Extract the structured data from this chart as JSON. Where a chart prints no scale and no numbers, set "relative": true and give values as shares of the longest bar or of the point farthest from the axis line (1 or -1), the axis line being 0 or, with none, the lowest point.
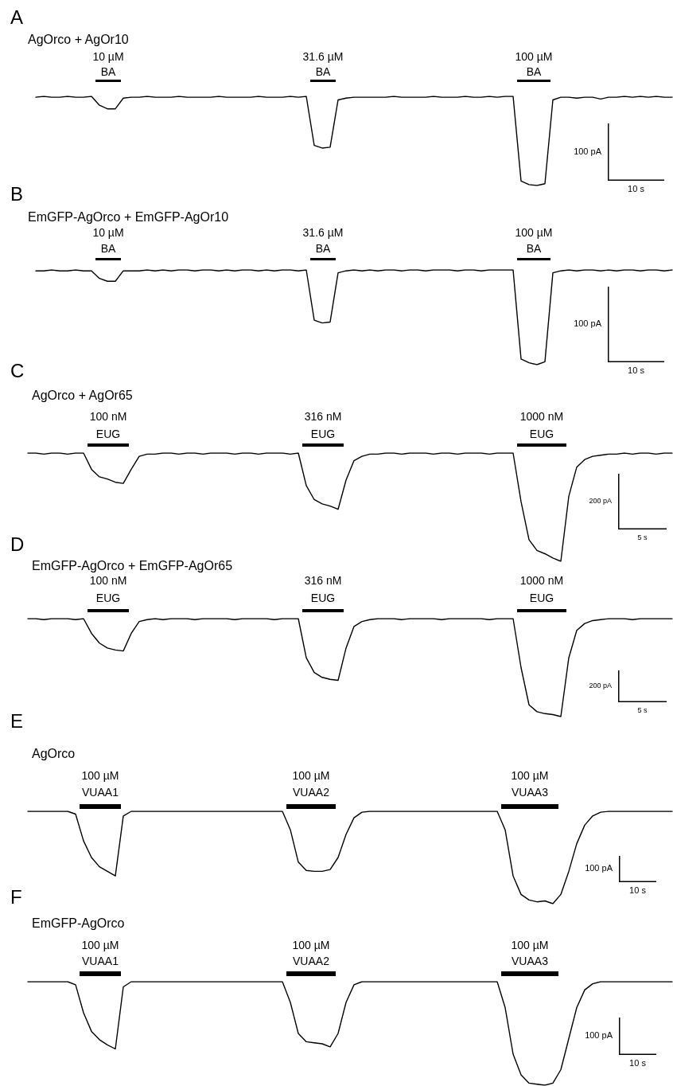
{
  "chart_data": [
    {
      "type": "line",
      "title": "A",
      "subtitle": "AgOrco + AgOr10",
      "relative": true,
      "marker": "none",
      "line_style": "solid",
      "color": "#000000",
      "annotations": [
        "10 µM",
        "BA",
        "31.6 µM",
        "BA",
        "100 µM",
        "BA",
        "100 pA",
        "10 s"
      ],
      "categories": [
        null,
        null,
        null,
        null,
        null,
        null,
        null,
        null,
        null,
        null,
        null,
        null,
        null,
        null,
        null,
        null,
        null,
        null,
        null,
        null,
        null,
        null,
        null,
        null,
        null,
        null,
        null,
        null,
        null,
        null,
        null,
        null,
        null,
        null,
        null,
        null,
        null,
        null,
        null,
        null,
        null,
        null,
        null,
        null,
        null,
        null,
        null,
        null,
        null,
        null,
        null,
        null,
        null,
        null,
        null,
        null,
        null,
        null,
        null,
        null,
        null,
        null,
        null,
        null,
        null,
        null,
        null,
        null,
        null,
        null,
        null,
        null,
        null,
        null,
        null,
        null,
        null,
        null,
        null,
        null,
        null
      ],
      "values": [
        0.99,
        1,
        0.99,
        0.99,
        1,
        0.99,
        0.99,
        1,
        0.9,
        0.86,
        0.86,
        0.98,
        0.99,
        0.99,
        1,
        0.99,
        0.99,
        0.99,
        1,
        0.99,
        0.99,
        0.99,
        0.99,
        1,
        0.99,
        0.99,
        0.99,
        0.99,
        1,
        0.99,
        0.99,
        0.99,
        1,
        0.99,
        1,
        0.45,
        0.42,
        0.43,
        0.96,
        0.98,
        0.99,
        0.99,
        0.99,
        0.99,
        0.99,
        1,
        0.99,
        0.99,
        0.99,
        0.99,
        1,
        0.99,
        0.99,
        0.99,
        1,
        0.99,
        0.99,
        1,
        0.99,
        1,
        1,
        0.05,
        0.01,
        0,
        0.02,
        0.96,
        0.99,
        0.99,
        0.98,
        0.99,
        0.99,
        0.97,
        0.99,
        0.99,
        1,
        0.99,
        1,
        0.99,
        1,
        0.99,
        0.99
      ]
    },
    {
      "type": "line",
      "title": "B",
      "subtitle": "EmGFP-AgOrco + EmGFP-AgOr10",
      "relative": true,
      "marker": "none",
      "line_style": "solid",
      "color": "#000000",
      "annotations": [
        "10 µM",
        "BA",
        "31.6 µM",
        "BA",
        "100 µM",
        "BA",
        "100 pA",
        "10 s"
      ],
      "categories": [
        null,
        null,
        null,
        null,
        null,
        null,
        null,
        null,
        null,
        null,
        null,
        null,
        null,
        null,
        null,
        null,
        null,
        null,
        null,
        null,
        null,
        null,
        null,
        null,
        null,
        null,
        null,
        null,
        null,
        null,
        null,
        null,
        null,
        null,
        null,
        null,
        null,
        null,
        null,
        null,
        null,
        null,
        null,
        null,
        null,
        null,
        null,
        null,
        null,
        null,
        null,
        null,
        null,
        null,
        null,
        null,
        null,
        null,
        null,
        null,
        null,
        null,
        null,
        null,
        null,
        null,
        null,
        null,
        null,
        null,
        null,
        null,
        null,
        null,
        null,
        null,
        null,
        null,
        null,
        null,
        null
      ],
      "values": [
        0.99,
        0.99,
        1,
        0.99,
        0.99,
        1,
        0.99,
        0.99,
        0.91,
        0.88,
        0.88,
        0.99,
        0.99,
        0.99,
        1,
        0.99,
        1,
        0.99,
        1,
        1,
        0.99,
        1,
        1,
        0.99,
        1,
        0.99,
        1,
        1,
        0.99,
        1,
        0.99,
        1,
        1,
        0.99,
        1,
        0.47,
        0.44,
        0.45,
        0.97,
        0.99,
        1,
        0.99,
        1,
        0.99,
        1,
        1,
        0.99,
        1,
        1,
        0.99,
        1,
        1,
        1,
        0.99,
        1,
        1,
        0.99,
        1,
        1,
        1,
        1,
        0.06,
        0.02,
        0,
        0.03,
        0.97,
        0.99,
        1,
        0.99,
        1,
        1,
        0.99,
        1,
        0.99,
        1,
        1,
        0.99,
        1,
        1,
        0.99,
        1
      ]
    },
    {
      "type": "line",
      "title": "C",
      "subtitle": "AgOrco + AgOr65",
      "relative": true,
      "marker": "none",
      "line_style": "solid",
      "color": "#000000",
      "annotations": [
        "100 nM",
        "EUG",
        "316 nM",
        "EUG",
        "1000 nM",
        "EUG",
        "200 pA",
        "5 s"
      ],
      "categories": [
        null,
        null,
        null,
        null,
        null,
        null,
        null,
        null,
        null,
        null,
        null,
        null,
        null,
        null,
        null,
        null,
        null,
        null,
        null,
        null,
        null,
        null,
        null,
        null,
        null,
        null,
        null,
        null,
        null,
        null,
        null,
        null,
        null,
        null,
        null,
        null,
        null,
        null,
        null,
        null,
        null,
        null,
        null,
        null,
        null,
        null,
        null,
        null,
        null,
        null,
        null,
        null,
        null,
        null,
        null,
        null,
        null,
        null,
        null,
        null,
        null,
        null,
        null,
        null,
        null,
        null,
        null,
        null,
        null,
        null,
        null,
        null,
        null,
        null,
        null,
        null,
        null,
        null,
        null,
        null,
        null,
        null
      ],
      "values": [
        1,
        1,
        0.99,
        1,
        1,
        0.99,
        1,
        1,
        0.85,
        0.78,
        0.76,
        0.73,
        0.72,
        0.85,
        0.97,
        0.99,
        0.99,
        1,
        1,
        0.99,
        1,
        1,
        0.99,
        1,
        1,
        1,
        0.99,
        1,
        1,
        0.99,
        1,
        1,
        1,
        0.99,
        1,
        0.7,
        0.57,
        0.53,
        0.51,
        0.48,
        0.75,
        0.93,
        0.97,
        0.99,
        0.99,
        1,
        1,
        0.99,
        1,
        1,
        1,
        0.99,
        1,
        1,
        0.99,
        1,
        1,
        1,
        0.99,
        1,
        1,
        1,
        0.55,
        0.2,
        0.1,
        0.07,
        0.03,
        0,
        0.6,
        0.87,
        0.94,
        0.97,
        0.98,
        0.99,
        0.99,
        1,
        0.99,
        1,
        1,
        0.99,
        1,
        1
      ]
    },
    {
      "type": "line",
      "title": "D",
      "subtitle": "EmGFP-AgOrco + EmGFP-AgOr65",
      "relative": true,
      "marker": "none",
      "line_style": "solid",
      "color": "#000000",
      "annotations": [
        "100 nM",
        "EUG",
        "316 nM",
        "EUG",
        "1000 nM",
        "EUG",
        "200 pA",
        "5 s"
      ],
      "categories": [
        null,
        null,
        null,
        null,
        null,
        null,
        null,
        null,
        null,
        null,
        null,
        null,
        null,
        null,
        null,
        null,
        null,
        null,
        null,
        null,
        null,
        null,
        null,
        null,
        null,
        null,
        null,
        null,
        null,
        null,
        null,
        null,
        null,
        null,
        null,
        null,
        null,
        null,
        null,
        null,
        null,
        null,
        null,
        null,
        null,
        null,
        null,
        null,
        null,
        null,
        null,
        null,
        null,
        null,
        null,
        null,
        null,
        null,
        null,
        null,
        null,
        null,
        null,
        null,
        null,
        null,
        null,
        null,
        null,
        null,
        null,
        null,
        null,
        null,
        null,
        null,
        null,
        null,
        null,
        null,
        null,
        null
      ],
      "values": [
        1,
        1,
        0.99,
        1,
        1,
        1,
        0.99,
        1,
        0.85,
        0.75,
        0.7,
        0.68,
        0.67,
        0.85,
        0.97,
        0.99,
        1,
        0.99,
        1,
        1,
        1,
        0.99,
        1,
        1,
        1,
        1,
        0.99,
        1,
        1,
        1,
        1,
        0.99,
        1,
        1,
        1,
        0.6,
        0.45,
        0.4,
        0.38,
        0.37,
        0.7,
        0.92,
        0.97,
        0.99,
        1,
        1,
        1,
        0.99,
        1,
        1,
        1,
        1,
        0.99,
        1,
        1,
        1,
        1,
        1,
        0.99,
        1,
        1,
        1,
        0.5,
        0.12,
        0.05,
        0.03,
        0.02,
        0,
        0.6,
        0.88,
        0.95,
        0.98,
        0.99,
        1,
        1,
        1,
        0.99,
        1,
        1,
        1,
        1,
        1
      ]
    },
    {
      "type": "line",
      "title": "E",
      "subtitle": "AgOrco",
      "relative": true,
      "marker": "none",
      "line_style": "solid",
      "color": "#000000",
      "annotations": [
        "100 µM",
        "VUAA1",
        "100 µM",
        "VUAA2",
        "100 µM",
        "VUAA3",
        "100 pA",
        "10 s"
      ],
      "categories": [
        null,
        null,
        null,
        null,
        null,
        null,
        null,
        null,
        null,
        null,
        null,
        null,
        null,
        null,
        null,
        null,
        null,
        null,
        null,
        null,
        null,
        null,
        null,
        null,
        null,
        null,
        null,
        null,
        null,
        null,
        null,
        null,
        null,
        null,
        null,
        null,
        null,
        null,
        null,
        null,
        null,
        null,
        null,
        null,
        null,
        null,
        null,
        null,
        null,
        null,
        null,
        null,
        null,
        null,
        null,
        null,
        null,
        null,
        null,
        null,
        null,
        null,
        null,
        null,
        null,
        null,
        null,
        null,
        null,
        null,
        null,
        null,
        null,
        null,
        null,
        null,
        null,
        null,
        null,
        null,
        null,
        null
      ],
      "values": [
        1,
        1,
        1,
        1,
        1,
        1,
        0.97,
        0.68,
        0.5,
        0.4,
        0.35,
        0.3,
        0.95,
        1,
        1,
        1,
        1,
        1,
        1,
        1,
        1,
        1,
        1,
        1,
        1,
        1,
        1,
        1,
        1,
        1,
        1,
        1,
        1,
        0.8,
        0.45,
        0.36,
        0.35,
        0.35,
        0.37,
        0.5,
        0.75,
        0.93,
        0.99,
        1,
        1,
        1,
        1,
        1,
        1,
        1,
        1,
        1,
        1,
        1,
        1,
        1,
        1,
        1,
        1,
        1,
        0.8,
        0.3,
        0.1,
        0.04,
        0.02,
        0.03,
        0,
        0.1,
        0.35,
        0.65,
        0.85,
        0.95,
        0.99,
        1,
        1,
        1,
        1,
        1,
        1,
        1,
        1,
        1
      ]
    },
    {
      "type": "line",
      "title": "F",
      "subtitle": "EmGFP-AgOrco",
      "relative": true,
      "marker": "none",
      "line_style": "solid",
      "color": "#000000",
      "annotations": [
        "100 µM",
        "VUAA1",
        "100 µM",
        "VUAA2",
        "100 µM",
        "VUAA3",
        "100 pA",
        "10 s"
      ],
      "categories": [
        null,
        null,
        null,
        null,
        null,
        null,
        null,
        null,
        null,
        null,
        null,
        null,
        null,
        null,
        null,
        null,
        null,
        null,
        null,
        null,
        null,
        null,
        null,
        null,
        null,
        null,
        null,
        null,
        null,
        null,
        null,
        null,
        null,
        null,
        null,
        null,
        null,
        null,
        null,
        null,
        null,
        null,
        null,
        null,
        null,
        null,
        null,
        null,
        null,
        null,
        null,
        null,
        null,
        null,
        null,
        null,
        null,
        null,
        null,
        null,
        null,
        null,
        null,
        null,
        null,
        null,
        null,
        null,
        null,
        null,
        null,
        null,
        null,
        null,
        null,
        null,
        null,
        null,
        null,
        null,
        null,
        null
      ],
      "values": [
        1,
        1,
        1,
        1,
        1,
        1,
        0.97,
        0.7,
        0.52,
        0.44,
        0.39,
        0.35,
        0.95,
        1,
        1,
        1,
        1,
        1,
        1,
        1,
        1,
        1,
        1,
        1,
        1,
        1,
        1,
        1,
        1,
        1,
        1,
        1,
        1,
        0.8,
        0.5,
        0.42,
        0.41,
        0.4,
        0.37,
        0.5,
        0.8,
        0.97,
        1,
        1,
        1,
        1,
        1,
        1,
        1,
        1,
        1,
        1,
        1,
        1,
        1,
        1,
        1,
        1,
        1,
        1,
        0.75,
        0.3,
        0.1,
        0.02,
        0.01,
        0,
        0.02,
        0.15,
        0.45,
        0.75,
        0.92,
        0.98,
        1,
        1,
        1,
        1,
        1,
        1,
        1,
        1,
        1,
        1
      ]
    }
  ]
}
